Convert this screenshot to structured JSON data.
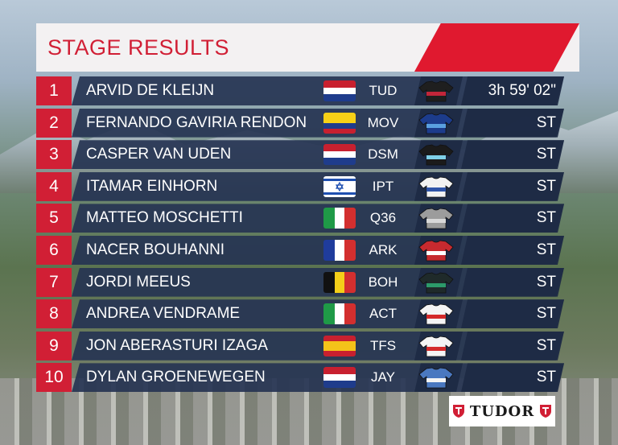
{
  "header": {
    "title": "STAGE RESULTS"
  },
  "sponsor": {
    "name": "TUDOR"
  },
  "results": [
    {
      "position": "1",
      "rider": "ARVID DE KLEIJN",
      "flag": "netherlands",
      "team": "TUD",
      "time": "3h 59' 02\"",
      "jersey": [
        "#1f1f1f",
        "#c2263a"
      ]
    },
    {
      "position": "2",
      "rider": "FERNANDO GAVIRIA RENDON",
      "flag": "colombia",
      "team": "MOV",
      "time": "ST",
      "jersey": [
        "#1c3c8c",
        "#5aa0e0"
      ]
    },
    {
      "position": "3",
      "rider": "CASPER VAN UDEN",
      "flag": "netherlands",
      "team": "DSM",
      "time": "ST",
      "jersey": [
        "#1b1b1b",
        "#7fd0e8"
      ]
    },
    {
      "position": "4",
      "rider": "ITAMAR EINHORN",
      "flag": "israel",
      "team": "IPT",
      "time": "ST",
      "jersey": [
        "#f2f2f2",
        "#2f54a8"
      ]
    },
    {
      "position": "5",
      "rider": "MATTEO MOSCHETTI",
      "flag": "italy",
      "team": "Q36",
      "time": "ST",
      "jersey": [
        "#9c9c9c",
        "#d8d8d8"
      ]
    },
    {
      "position": "6",
      "rider": "NACER BOUHANNI",
      "flag": "france",
      "team": "ARK",
      "time": "ST",
      "jersey": [
        "#c72a2f",
        "#ffffff"
      ]
    },
    {
      "position": "7",
      "rider": "JORDI MEEUS",
      "flag": "belgium",
      "team": "BOH",
      "time": "ST",
      "jersey": [
        "#1f2a2a",
        "#2c9a6a"
      ]
    },
    {
      "position": "8",
      "rider": "ANDREA VENDRAME",
      "flag": "italy",
      "team": "ACT",
      "time": "ST",
      "jersey": [
        "#f4f4f4",
        "#d42a2a"
      ]
    },
    {
      "position": "9",
      "rider": "JON ABERASTURI IZAGA",
      "flag": "spain",
      "team": "TFS",
      "time": "ST",
      "jersey": [
        "#f4f4f4",
        "#d42a2a"
      ]
    },
    {
      "position": "10",
      "rider": "DYLAN GROENEWEGEN",
      "flag": "netherlands",
      "team": "JAY",
      "time": "ST",
      "jersey": [
        "#4a78c0",
        "#f4f4f4"
      ]
    }
  ],
  "colors": {
    "accent": "#d11f35",
    "row_bg": "#263452",
    "title_bg": "#f3f1f2"
  }
}
